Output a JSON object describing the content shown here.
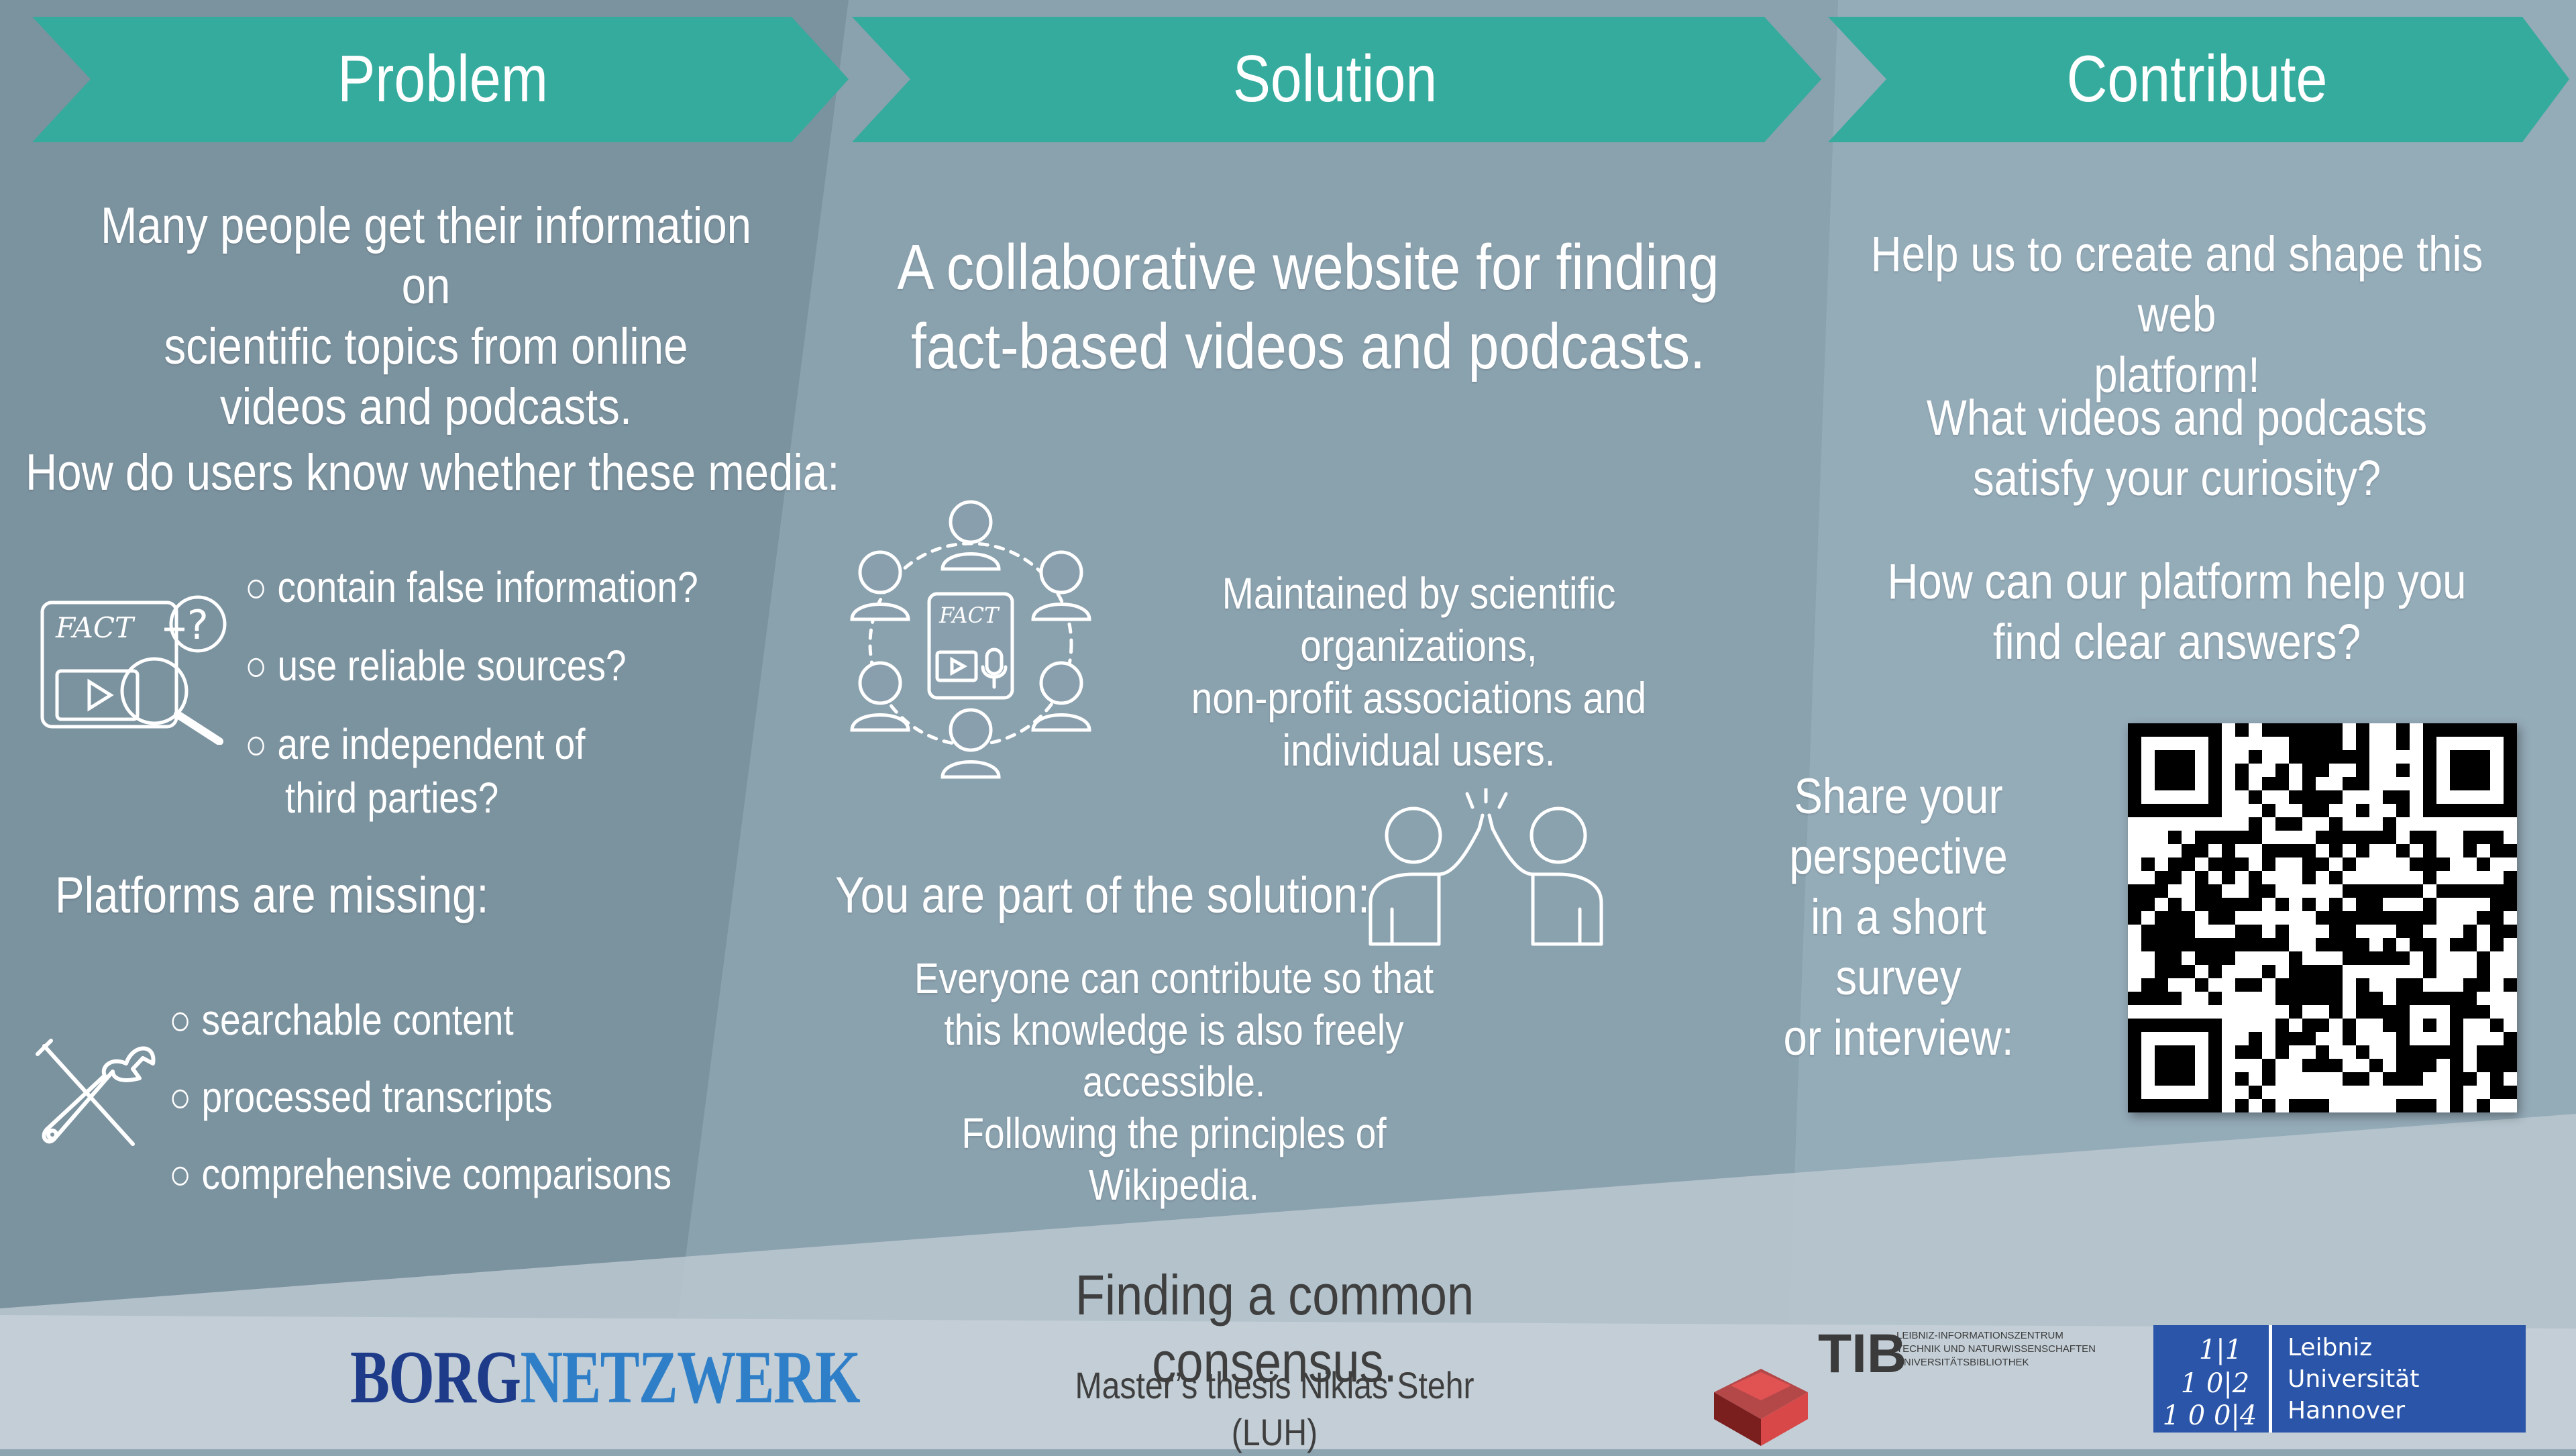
{
  "colors": {
    "teal": "#35ab9e",
    "background": "#8da4b1",
    "footer": "#c3ced6",
    "borg_dark": "#1e3b8a",
    "borg_light": "#2f7fc8",
    "luh_blue": "#2a55a8"
  },
  "problem": {
    "header": "Problem",
    "intro": [
      "Many people get their information on",
      "scientific topics from online",
      "videos and podcasts."
    ],
    "question": "How do users know whether these media:",
    "icon_fact_text": "FACT",
    "bullets": [
      "○ contain false information?",
      "○ use reliable sources?",
      "○ are independent of",
      "third parties?"
    ],
    "missing_title": "Platforms are missing:",
    "missing_items": [
      "○ searchable content",
      "○ processed transcripts",
      "○ comprehensive comparisons"
    ]
  },
  "solution": {
    "header": "Solution",
    "headline": [
      "A collaborative website for finding",
      "fact-based videos and podcasts."
    ],
    "icon_fact_text": "FACT",
    "maintained": [
      "Maintained by scientific organizations,",
      "non-profit associations and",
      "individual users."
    ],
    "part_of": "You are part of the solution:",
    "everyone": [
      "Everyone can contribute so that",
      "this knowledge is also freely accessible.",
      "Following the principles of Wikipedia."
    ]
  },
  "contribute": {
    "header": "Contribute",
    "help": [
      "Help us to create and shape this web",
      "platform!"
    ],
    "what": [
      "What videos and podcasts",
      "satisfy your curiosity?"
    ],
    "how": [
      "How can our platform help you",
      "find clear answers?"
    ],
    "share": [
      "Share your",
      "perspective",
      "in a short survey",
      "or interview:"
    ]
  },
  "footer": {
    "tagline": "Finding a common consensus.",
    "thesis": "Master’s thesis Niklas Stehr (LUH)",
    "borg_part1": "BORG",
    "borg_part2": "NETZWERK",
    "tib_name": "TIB",
    "tib_lines": [
      "LEIBNIZ-INFORMATIONSZENTRUM",
      "TECHNIK UND NATURWISSENSCHAFTEN",
      "UNIVERSITÄTSBIBLIOTHEK"
    ],
    "luh_lines": [
      "Leibniz",
      "Universität",
      "Hannover"
    ],
    "luh_mark": [
      "1|1",
      "1 0|2",
      "1 0 0|4"
    ]
  },
  "icons": {
    "fact_search": "fact-check-magnifier-icon",
    "wrench_screwdriver": "wrench-screwdriver-icon",
    "community": "community-circle-icon",
    "high_five": "high-five-icon",
    "qr_code": "qr-code"
  }
}
